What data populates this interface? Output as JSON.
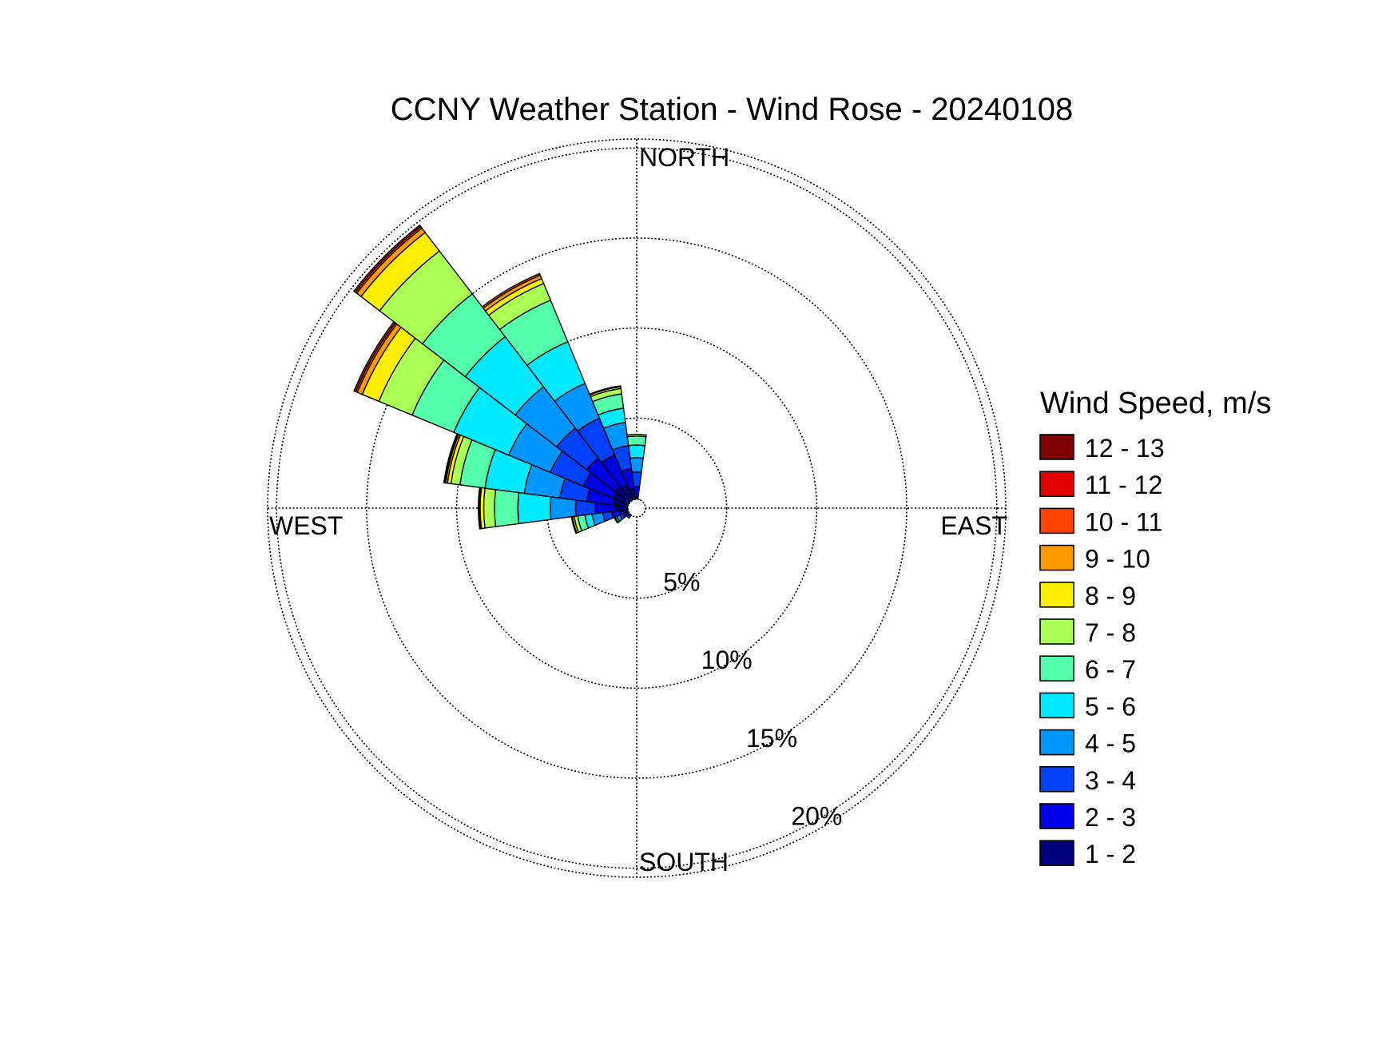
{
  "title": "CCNY Weather Station - Wind Rose - 20240108",
  "legend_title": "Wind Speed, m/s",
  "chart_data": {
    "type": "windrose",
    "title": "CCNY Weather Station - Wind Rose - 20240108",
    "radial_unit": "%",
    "radial_ticks": [
      5,
      10,
      15,
      20
    ],
    "radial_tick_labels": [
      "5%",
      "10%",
      "15%",
      "20%"
    ],
    "rmax": 20.5,
    "direction_labels": {
      "north": "NORTH",
      "east": "EAST",
      "south": "SOUTH",
      "west": "WEST"
    },
    "sector_width_deg": 15,
    "speed_bins": [
      "1 - 2",
      "2 - 3",
      "3 - 4",
      "4 - 5",
      "5 - 6",
      "6 - 7",
      "7 - 8",
      "8 - 9",
      "9 - 10",
      "10 - 11",
      "11 - 12",
      "12 - 13"
    ],
    "bin_colors": [
      "#00007f",
      "#0000e8",
      "#0040ff",
      "#0096ff",
      "#00eaff",
      "#55ffaa",
      "#aaff55",
      "#ffef00",
      "#ff9a00",
      "#ff4400",
      "#e00000",
      "#7f0000"
    ],
    "legend_order": [
      "12 - 13",
      "11 - 12",
      "10 - 11",
      "9 - 10",
      "8 - 9",
      "7 - 8",
      "6 - 7",
      "5 - 6",
      "4 - 5",
      "3 - 4",
      "2 - 3",
      "1 - 2"
    ],
    "sectors": [
      {
        "direction_deg": 255,
        "cumulative": [
          0.9,
          1.4,
          1.9,
          2.5,
          2.9,
          3.3,
          3.5,
          3.6,
          3.65
        ]
      },
      {
        "direction_deg": 270,
        "cumulative": [
          1.2,
          2.3,
          3.4,
          4.8,
          6.6,
          7.9,
          8.5,
          8.7,
          8.75,
          8.8
        ]
      },
      {
        "direction_deg": 285,
        "cumulative": [
          1.3,
          2.8,
          4.3,
          6.3,
          8.5,
          9.9,
          10.4,
          10.6,
          10.7,
          10.75,
          10.8
        ]
      },
      {
        "direction_deg": 300,
        "cumulative": [
          1.4,
          3.2,
          5.2,
          7.7,
          11.0,
          13.5,
          15.5,
          16.5,
          16.8,
          16.9,
          17.0
        ]
      },
      {
        "direction_deg": 315,
        "cumulative": [
          1.5,
          3.5,
          5.6,
          8.5,
          12.0,
          15.0,
          18.0,
          19.3,
          19.6,
          19.7,
          19.8
        ]
      },
      {
        "direction_deg": 330,
        "cumulative": [
          1.4,
          3.2,
          5.4,
          7.5,
          10.0,
          12.5,
          13.5,
          13.8,
          14.0,
          14.1
        ]
      },
      {
        "direction_deg": 345,
        "cumulative": [
          1.1,
          2.2,
          3.5,
          4.8,
          5.6,
          6.4,
          6.7,
          6.8,
          6.85
        ]
      },
      {
        "direction_deg": 0,
        "cumulative": [
          0.6,
          1.2,
          2.0,
          2.8,
          3.5,
          4.0,
          4.1
        ]
      },
      {
        "direction_deg": 240,
        "cumulative": [
          0.6,
          0.8,
          1.0,
          1.2,
          1.3,
          1.35
        ]
      },
      {
        "direction_deg": 225,
        "cumulative": [
          0.4,
          0.6,
          0.7
        ]
      },
      {
        "direction_deg": 15,
        "cumulative": [
          0.3,
          0.4,
          0.45
        ]
      }
    ]
  }
}
